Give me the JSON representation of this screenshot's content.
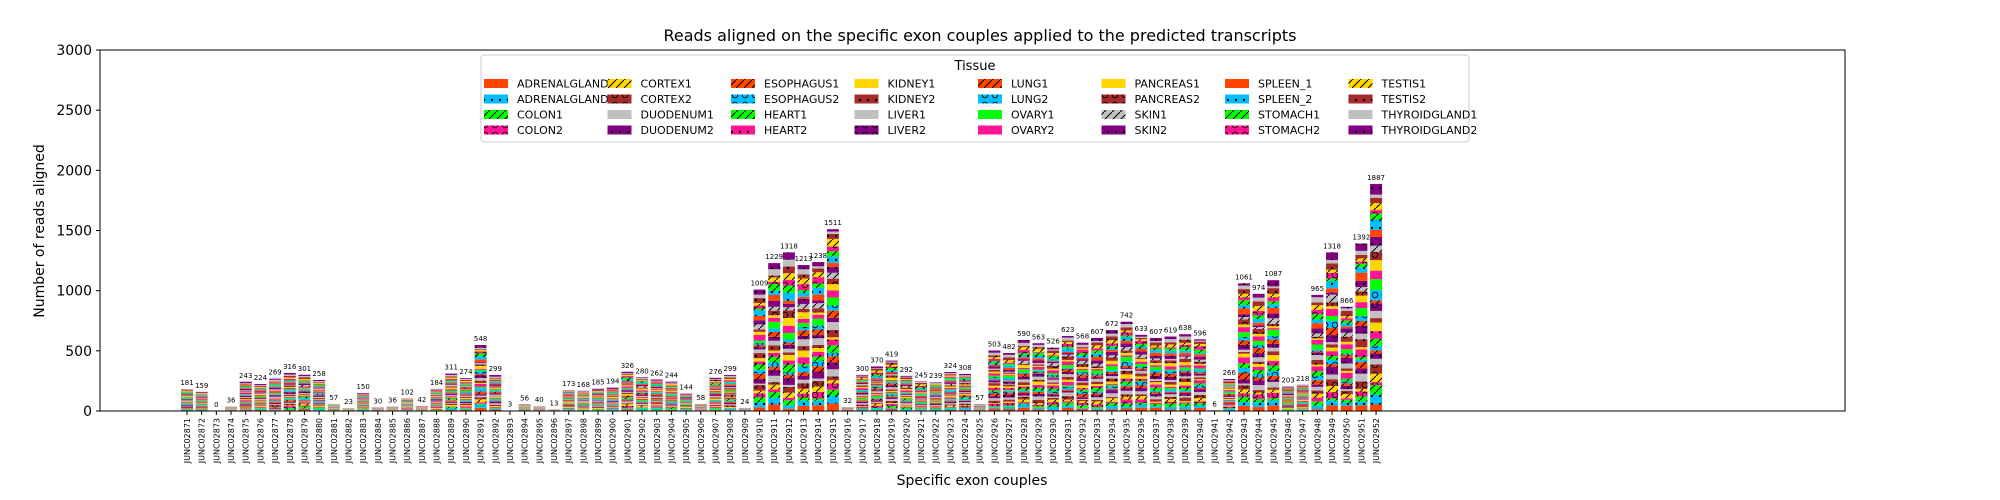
{
  "chart_data": {
    "type": "bar",
    "stacked": true,
    "title": "Reads aligned on the specific exon couples applied to the predicted transcripts",
    "xlabel": "Specific exon couples",
    "ylabel": "Number of reads aligned",
    "ylim": [
      0,
      3000
    ],
    "yticks": [
      0,
      500,
      1000,
      1500,
      2000,
      2500,
      3000
    ],
    "grid": false,
    "legend": {
      "title": "Tissue",
      "placement": "top-center",
      "columns": 8
    },
    "categories": [
      "JUNC02871",
      "JUNC02872",
      "JUNC02873",
      "JUNC02874",
      "JUNC02875",
      "JUNC02876",
      "JUNC02877",
      "JUNC02878",
      "JUNC02879",
      "JUNC02880",
      "JUNC02881",
      "JUNC02882",
      "JUNC02883",
      "JUNC02884",
      "JUNC02885",
      "JUNC02886",
      "JUNC02887",
      "JUNC02888",
      "JUNC02889",
      "JUNC02890",
      "JUNC02891",
      "JUNC02892",
      "JUNC02893",
      "JUNC02894",
      "JUNC02895",
      "JUNC02896",
      "JUNC02897",
      "JUNC02898",
      "JUNC02899",
      "JUNC02900",
      "JUNC02901",
      "JUNC02902",
      "JUNC02903",
      "JUNC02904",
      "JUNC02905",
      "JUNC02906",
      "JUNC02907",
      "JUNC02908",
      "JUNC02909",
      "JUNC02910",
      "JUNC02911",
      "JUNC02912",
      "JUNC02913",
      "JUNC02914",
      "JUNC02915",
      "JUNC02916",
      "JUNC02917",
      "JUNC02918",
      "JUNC02919",
      "JUNC02920",
      "JUNC02921",
      "JUNC02922",
      "JUNC02923",
      "JUNC02924",
      "JUNC02925",
      "JUNC02926",
      "JUNC02927",
      "JUNC02928",
      "JUNC02929",
      "JUNC02930",
      "JUNC02931",
      "JUNC02932",
      "JUNC02933",
      "JUNC02934",
      "JUNC02935",
      "JUNC02936",
      "JUNC02937",
      "JUNC02938",
      "JUNC02939",
      "JUNC02940",
      "JUNC02941",
      "JUNC02942",
      "JUNC02943",
      "JUNC02944",
      "JUNC02945",
      "JUNC02946",
      "JUNC02947",
      "JUNC02948",
      "JUNC02949",
      "JUNC02950",
      "JUNC02951",
      "JUNC02952"
    ],
    "totals": [
      181,
      159,
      0,
      36,
      243,
      224,
      269,
      316,
      301,
      258,
      57,
      23,
      150,
      30,
      36,
      102,
      42,
      184,
      311,
      274,
      548,
      299,
      3,
      56,
      40,
      13,
      173,
      168,
      185,
      194,
      326,
      280,
      262,
      244,
      144,
      58,
      276,
      299,
      24,
      1009,
      1229,
      1318,
      1213,
      1238,
      1511,
      32,
      300,
      370,
      419,
      292,
      245,
      239,
      324,
      308,
      57,
      503,
      482,
      590,
      563,
      526,
      623,
      568,
      607,
      672,
      742,
      633,
      607,
      619,
      638,
      596,
      6,
      266,
      1061,
      974,
      1087,
      203,
      218,
      965,
      1318,
      866,
      1392,
      1887
    ],
    "series": [
      {
        "name": "ADRENALGLAND1",
        "color": "#ff4500",
        "hatch": "none"
      },
      {
        "name": "ADRENALGLAND2",
        "color": "#00bfff",
        "hatch": "dots"
      },
      {
        "name": "COLON1",
        "color": "#00ff00",
        "hatch": "slash"
      },
      {
        "name": "COLON2",
        "color": "#ff1493",
        "hatch": "circle"
      },
      {
        "name": "CORTEX1",
        "color": "#ffd700",
        "hatch": "slash"
      },
      {
        "name": "CORTEX2",
        "color": "#a52a2a",
        "hatch": "circle"
      },
      {
        "name": "DUODENUM1",
        "color": "#c0c0c0",
        "hatch": "none"
      },
      {
        "name": "DUODENUM2",
        "color": "#800080",
        "hatch": "dots"
      },
      {
        "name": "ESOPHAGUS1",
        "color": "#ff4500",
        "hatch": "slash"
      },
      {
        "name": "ESOPHAGUS2",
        "color": "#00bfff",
        "hatch": "circle"
      },
      {
        "name": "HEART1",
        "color": "#00ff00",
        "hatch": "slash"
      },
      {
        "name": "HEART2",
        "color": "#ff1493",
        "hatch": "dots"
      },
      {
        "name": "KIDNEY1",
        "color": "#ffd700",
        "hatch": "none"
      },
      {
        "name": "KIDNEY2",
        "color": "#a52a2a",
        "hatch": "dots"
      },
      {
        "name": "LIVER1",
        "color": "#c0c0c0",
        "hatch": "none"
      },
      {
        "name": "LIVER2",
        "color": "#800080",
        "hatch": "circle"
      },
      {
        "name": "LUNG1",
        "color": "#ff4500",
        "hatch": "slash"
      },
      {
        "name": "LUNG2",
        "color": "#00bfff",
        "hatch": "circle"
      },
      {
        "name": "OVARY1",
        "color": "#00ff00",
        "hatch": "none"
      },
      {
        "name": "OVARY2",
        "color": "#ff1493",
        "hatch": "none"
      },
      {
        "name": "PANCREAS1",
        "color": "#ffd700",
        "hatch": "none"
      },
      {
        "name": "PANCREAS2",
        "color": "#a52a2a",
        "hatch": "circle"
      },
      {
        "name": "SKIN1",
        "color": "#c0c0c0",
        "hatch": "slash"
      },
      {
        "name": "SKIN2",
        "color": "#800080",
        "hatch": "dots"
      },
      {
        "name": "SPLEEN_1",
        "color": "#ff4500",
        "hatch": "none"
      },
      {
        "name": "SPLEEN_2",
        "color": "#00bfff",
        "hatch": "dots"
      },
      {
        "name": "STOMACH1",
        "color": "#00ff00",
        "hatch": "slash"
      },
      {
        "name": "STOMACH2",
        "color": "#ff1493",
        "hatch": "circle"
      },
      {
        "name": "TESTIS1",
        "color": "#ffd700",
        "hatch": "slash"
      },
      {
        "name": "TESTIS2",
        "color": "#a52a2a",
        "hatch": "dots"
      },
      {
        "name": "THYROIDGLAND1",
        "color": "#c0c0c0",
        "hatch": "none"
      },
      {
        "name": "THYROIDGLAND2",
        "color": "#800080",
        "hatch": "dots"
      }
    ]
  }
}
